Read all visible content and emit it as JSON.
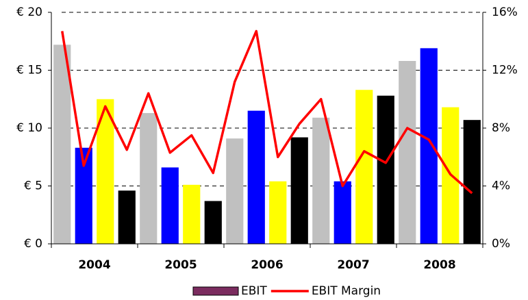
{
  "chart_data": {
    "type": "bar",
    "categories": [
      "2004",
      "2005",
      "2006",
      "2007",
      "2008"
    ],
    "series": [
      {
        "name": "EBIT",
        "color": "#7b2c5f",
        "bar_colors": [
          "#c0c0c0",
          "#0000ff",
          "#ffff00",
          "#000000"
        ],
        "values": [
          [
            17.2,
            8.3,
            12.5,
            4.6
          ],
          [
            11.3,
            6.6,
            5.1,
            3.7
          ],
          [
            9.1,
            11.5,
            5.4,
            9.2
          ],
          [
            10.9,
            5.4,
            13.3,
            12.8
          ],
          [
            15.8,
            16.9,
            11.8,
            10.7
          ]
        ]
      },
      {
        "name": "EBIT Margin",
        "color": "#ff0000",
        "axis": "y2",
        "type": "line",
        "values": [
          [
            14.7,
            5.4,
            9.5,
            6.5
          ],
          [
            10.4,
            6.3,
            7.5,
            4.9
          ],
          [
            11.2,
            14.7,
            6.0,
            8.3
          ],
          [
            10.0,
            4.0,
            6.4,
            5.6
          ],
          [
            8.0,
            7.2,
            4.8,
            3.5
          ]
        ]
      }
    ],
    "ylim": [
      0,
      20
    ],
    "yticks": [
      {
        "value": 0,
        "label": "€ 0"
      },
      {
        "value": 5,
        "label": "€ 5"
      },
      {
        "value": 10,
        "label": "€ 10"
      },
      {
        "value": 15,
        "label": "€ 15"
      },
      {
        "value": 20,
        "label": "€ 20"
      }
    ],
    "y2lim": [
      0,
      16
    ],
    "y2ticks": [
      {
        "value": 0,
        "label": "0%"
      },
      {
        "value": 4,
        "label": "4%"
      },
      {
        "value": 8,
        "label": "8%"
      },
      {
        "value": 12,
        "label": "12%"
      },
      {
        "value": 16,
        "label": "16%"
      }
    ],
    "grid": true
  }
}
